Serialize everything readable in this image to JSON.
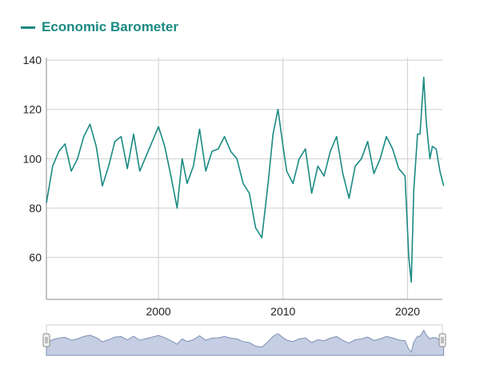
{
  "chart_data": {
    "type": "line",
    "series": [
      {
        "name": "Economic Barometer",
        "color": "#1a8a82",
        "x": [
          1991.0,
          1991.5,
          1992.0,
          1992.5,
          1993.0,
          1993.5,
          1994.0,
          1994.5,
          1995.0,
          1995.5,
          1996.0,
          1996.5,
          1997.0,
          1997.5,
          1998.0,
          1998.5,
          1999.0,
          1999.5,
          2000.0,
          2000.5,
          2001.0,
          2001.5,
          2001.9,
          2002.3,
          2002.8,
          2003.3,
          2003.8,
          2004.3,
          2004.8,
          2005.3,
          2005.8,
          2006.3,
          2006.8,
          2007.3,
          2007.8,
          2008.3,
          2008.8,
          2009.2,
          2009.6,
          2010.0,
          2010.3,
          2010.8,
          2011.3,
          2011.8,
          2012.3,
          2012.8,
          2013.3,
          2013.8,
          2014.3,
          2014.8,
          2015.3,
          2015.8,
          2016.3,
          2016.8,
          2017.3,
          2017.8,
          2018.3,
          2018.8,
          2019.3,
          2019.8,
          2020.1,
          2020.3,
          2020.5,
          2020.8,
          2021.0,
          2021.3,
          2021.5,
          2021.8,
          2022.0,
          2022.3,
          2022.6,
          2022.9
        ],
        "values": [
          82,
          97,
          103,
          106,
          95,
          100,
          109,
          114,
          105,
          89,
          97,
          107,
          109,
          96,
          110,
          95,
          101,
          107,
          113,
          105,
          93,
          80,
          100,
          90,
          97,
          112,
          95,
          103,
          104,
          109,
          103,
          100,
          90,
          86,
          72,
          68,
          90,
          110,
          120,
          105,
          95,
          90,
          100,
          104,
          86,
          97,
          93,
          103,
          109,
          94,
          84,
          97,
          100,
          107,
          94,
          100,
          109,
          104,
          96,
          93,
          60,
          50,
          87,
          110,
          110,
          133,
          115,
          100,
          105,
          104,
          95,
          89
        ]
      }
    ],
    "xlim": [
      1991,
      2022.8
    ],
    "ylim": [
      43,
      141
    ],
    "xticks": [
      2000,
      2010,
      2020
    ],
    "yticks": [
      60,
      80,
      100,
      120,
      140
    ],
    "grid": true,
    "legend": "top-left",
    "navigator": true
  }
}
